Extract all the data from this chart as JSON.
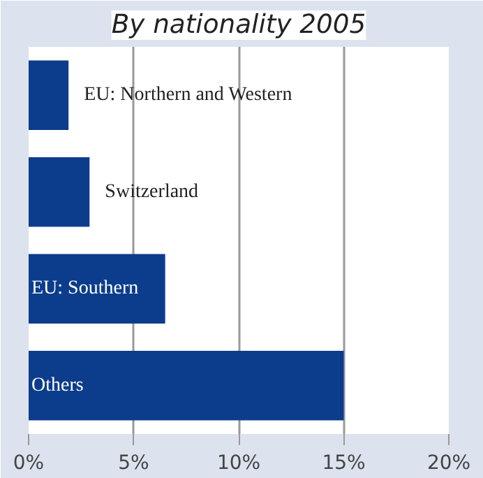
{
  "chart_data": {
    "type": "bar",
    "orientation": "horizontal",
    "title": "By nationality 2005",
    "categories": [
      "EU: Northern and Western",
      "Switzerland",
      "EU: Southern",
      "Others"
    ],
    "values": [
      1.9,
      2.9,
      6.5,
      15.0
    ],
    "color": "#0c3c8c",
    "xlim": [
      0,
      20
    ],
    "xticks": [
      {
        "value": 0,
        "label": "0%"
      },
      {
        "value": 5,
        "label": "5%"
      },
      {
        "value": 10,
        "label": "10%"
      },
      {
        "value": 15,
        "label": "15%"
      },
      {
        "value": 20,
        "label": "20%"
      }
    ],
    "grid": "x"
  }
}
